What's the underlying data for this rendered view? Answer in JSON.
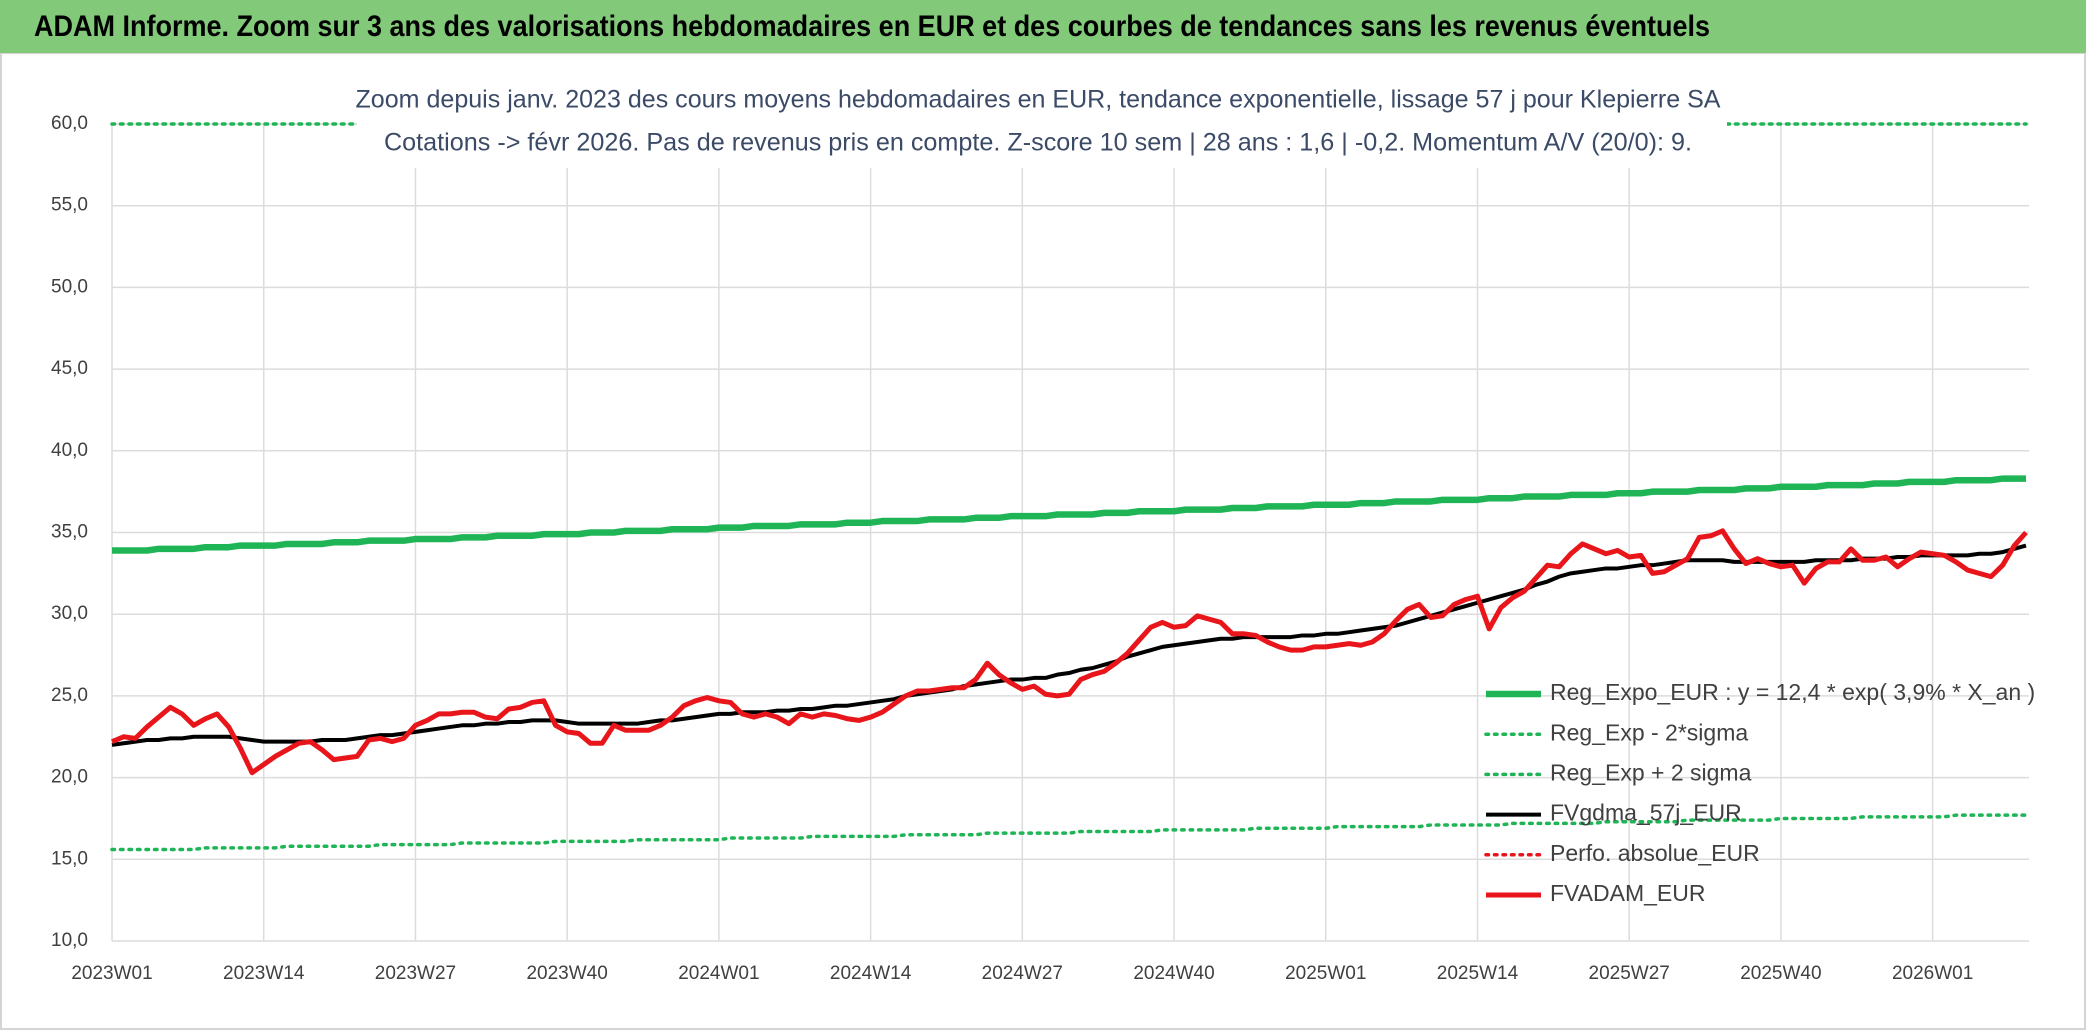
{
  "chart_data": {
    "type": "line",
    "title": "ADAM Informe. Zoom sur 3 ans des valorisations hebdomadaires en EUR et des courbes de tendances sans les revenus éventuels",
    "subtitle": [
      "Zoom depuis janv. 2023 des cours moyens hebdomadaires en EUR, tendance exponentielle, lissage 57 j pour Klepierre SA",
      "Cotations -> févr 2026. Pas de revenus pris en compte. Z-score 10 sem | 28 ans : 1,6 | -0,2. Momentum A/V (20/0): 9."
    ],
    "categories": [
      "2023W01",
      null,
      null,
      null,
      null,
      null,
      null,
      null,
      null,
      null,
      null,
      null,
      null,
      "2023W14",
      null,
      null,
      null,
      null,
      null,
      null,
      null,
      null,
      null,
      null,
      null,
      null,
      "2023W27",
      null,
      null,
      null,
      null,
      null,
      null,
      null,
      null,
      null,
      null,
      null,
      null,
      "2023W40",
      null,
      null,
      null,
      null,
      null,
      null,
      null,
      null,
      null,
      null,
      null,
      null,
      "2024W01",
      null,
      null,
      null,
      null,
      null,
      null,
      null,
      null,
      null,
      null,
      null,
      null,
      "2024W14",
      null,
      null,
      null,
      null,
      null,
      null,
      null,
      null,
      null,
      null,
      null,
      null,
      "2024W27",
      null,
      null,
      null,
      null,
      null,
      null,
      null,
      null,
      null,
      null,
      null,
      null,
      "2024W40",
      null,
      null,
      null,
      null,
      null,
      null,
      null,
      null,
      null,
      null,
      null,
      null,
      "2025W01",
      null,
      null,
      null,
      null,
      null,
      null,
      null,
      null,
      null,
      null,
      null,
      null,
      "2025W14",
      null,
      null,
      null,
      null,
      null,
      null,
      null,
      null,
      null,
      null,
      null,
      null,
      "2025W27",
      null,
      null,
      null,
      null,
      null,
      null,
      null,
      null,
      null,
      null,
      null,
      null,
      "2025W40",
      null,
      null,
      null,
      null,
      null,
      null,
      null,
      null,
      null,
      null,
      null,
      null,
      "2026W01",
      null,
      null,
      null,
      null,
      null,
      null,
      null,
      null
    ],
    "ylim": [
      10,
      60
    ],
    "yticks": [
      {
        "value": 10,
        "label": "10,0"
      },
      {
        "value": 15,
        "label": "15,0"
      },
      {
        "value": 20,
        "label": "20,0"
      },
      {
        "value": 25,
        "label": "25,0"
      },
      {
        "value": 30,
        "label": "30,0"
      },
      {
        "value": 35,
        "label": "35,0"
      },
      {
        "value": 40,
        "label": "40,0"
      },
      {
        "value": 45,
        "label": "45,0"
      },
      {
        "value": 50,
        "label": "50,0"
      },
      {
        "value": 55,
        "label": "55,0"
      },
      {
        "value": 60,
        "label": "60,0"
      }
    ],
    "grid": true,
    "legend": "lower right",
    "series": [
      {
        "name": "Reg_Expo_EUR : y = 12,4 * exp( 3,9% *  X_an )",
        "color": "#1fb556",
        "style": "solid",
        "values": [
          33.9,
          33.9,
          33.9,
          33.9,
          34.0,
          34.0,
          34.0,
          34.0,
          34.1,
          34.1,
          34.1,
          34.2,
          34.2,
          34.2,
          34.2,
          34.3,
          34.3,
          34.3,
          34.3,
          34.4,
          34.4,
          34.4,
          34.5,
          34.5,
          34.5,
          34.5,
          34.6,
          34.6,
          34.6,
          34.6,
          34.7,
          34.7,
          34.7,
          34.8,
          34.8,
          34.8,
          34.8,
          34.9,
          34.9,
          34.9,
          34.9,
          35.0,
          35.0,
          35.0,
          35.1,
          35.1,
          35.1,
          35.1,
          35.2,
          35.2,
          35.2,
          35.2,
          35.3,
          35.3,
          35.3,
          35.4,
          35.4,
          35.4,
          35.4,
          35.5,
          35.5,
          35.5,
          35.5,
          35.6,
          35.6,
          35.6,
          35.7,
          35.7,
          35.7,
          35.7,
          35.8,
          35.8,
          35.8,
          35.8,
          35.9,
          35.9,
          35.9,
          36.0,
          36.0,
          36.0,
          36.0,
          36.1,
          36.1,
          36.1,
          36.1,
          36.2,
          36.2,
          36.2,
          36.3,
          36.3,
          36.3,
          36.3,
          36.4,
          36.4,
          36.4,
          36.4,
          36.5,
          36.5,
          36.5,
          36.6,
          36.6,
          36.6,
          36.6,
          36.7,
          36.7,
          36.7,
          36.7,
          36.8,
          36.8,
          36.8,
          36.9,
          36.9,
          36.9,
          36.9,
          37.0,
          37.0,
          37.0,
          37.0,
          37.1,
          37.1,
          37.1,
          37.2,
          37.2,
          37.2,
          37.2,
          37.3,
          37.3,
          37.3,
          37.3,
          37.4,
          37.4,
          37.4,
          37.5,
          37.5,
          37.5,
          37.5,
          37.6,
          37.6,
          37.6,
          37.6,
          37.7,
          37.7,
          37.7,
          37.8,
          37.8,
          37.8,
          37.8,
          37.9,
          37.9,
          37.9,
          37.9,
          38.0,
          38.0,
          38.0,
          38.1,
          38.1,
          38.1,
          38.1,
          38.2,
          38.2,
          38.2,
          38.2,
          38.3,
          38.3,
          38.3
        ]
      },
      {
        "name": "Reg_Exp - 2*sigma",
        "color": "#1fb556",
        "style": "dotted",
        "values": [
          15.6,
          15.6,
          15.6,
          15.6,
          15.6,
          15.6,
          15.6,
          15.6,
          15.7,
          15.7,
          15.7,
          15.7,
          15.7,
          15.7,
          15.7,
          15.8,
          15.8,
          15.8,
          15.8,
          15.8,
          15.8,
          15.8,
          15.8,
          15.9,
          15.9,
          15.9,
          15.9,
          15.9,
          15.9,
          15.9,
          16.0,
          16.0,
          16.0,
          16.0,
          16.0,
          16.0,
          16.0,
          16.0,
          16.1,
          16.1,
          16.1,
          16.1,
          16.1,
          16.1,
          16.1,
          16.2,
          16.2,
          16.2,
          16.2,
          16.2,
          16.2,
          16.2,
          16.2,
          16.3,
          16.3,
          16.3,
          16.3,
          16.3,
          16.3,
          16.3,
          16.4,
          16.4,
          16.4,
          16.4,
          16.4,
          16.4,
          16.4,
          16.4,
          16.5,
          16.5,
          16.5,
          16.5,
          16.5,
          16.5,
          16.5,
          16.6,
          16.6,
          16.6,
          16.6,
          16.6,
          16.6,
          16.6,
          16.6,
          16.7,
          16.7,
          16.7,
          16.7,
          16.7,
          16.7,
          16.7,
          16.8,
          16.8,
          16.8,
          16.8,
          16.8,
          16.8,
          16.8,
          16.8,
          16.9,
          16.9,
          16.9,
          16.9,
          16.9,
          16.9,
          16.9,
          17.0,
          17.0,
          17.0,
          17.0,
          17.0,
          17.0,
          17.0,
          17.0,
          17.1,
          17.1,
          17.1,
          17.1,
          17.1,
          17.1,
          17.1,
          17.2,
          17.2,
          17.2,
          17.2,
          17.2,
          17.2,
          17.2,
          17.2,
          17.3,
          17.3,
          17.3,
          17.3,
          17.3,
          17.3,
          17.3,
          17.4,
          17.4,
          17.4,
          17.4,
          17.4,
          17.4,
          17.4,
          17.4,
          17.5,
          17.5,
          17.5,
          17.5,
          17.5,
          17.5,
          17.5,
          17.6,
          17.6,
          17.6,
          17.6,
          17.6,
          17.6,
          17.6,
          17.6,
          17.7,
          17.7,
          17.7,
          17.7,
          17.7,
          17.7,
          17.7
        ]
      },
      {
        "name": "Reg_Exp + 2 sigma",
        "color": "#1fb556",
        "style": "dotted",
        "values": [
          60,
          60,
          60,
          60,
          60,
          60,
          60,
          60,
          60,
          60,
          60,
          60,
          60,
          60,
          60,
          60,
          60,
          60,
          60,
          60,
          60,
          60,
          60,
          60,
          60,
          60,
          60,
          60,
          60,
          60,
          60,
          60,
          60,
          60,
          60,
          60,
          60,
          60,
          60,
          60,
          60,
          60,
          60,
          60,
          60,
          60,
          60,
          60,
          60,
          60,
          60,
          60,
          60,
          60,
          60,
          60,
          60,
          60,
          60,
          60,
          60,
          60,
          60,
          60,
          60,
          60,
          60,
          60,
          60,
          60,
          60,
          60,
          60,
          60,
          60,
          60,
          60,
          60,
          60,
          60,
          60,
          60,
          60,
          60,
          60,
          60,
          60,
          60,
          60,
          60,
          60,
          60,
          60,
          60,
          60,
          60,
          60,
          60,
          60,
          60,
          60,
          60,
          60,
          60,
          60,
          60,
          60,
          60,
          60,
          60,
          60,
          60,
          60,
          60,
          60,
          60,
          60,
          60,
          60,
          60,
          60,
          60,
          60,
          60,
          60,
          60,
          60,
          60,
          60,
          60,
          60,
          60,
          60,
          60,
          60,
          60,
          60,
          60,
          60,
          60,
          60,
          60,
          60,
          60,
          60,
          60,
          60,
          60,
          60,
          60,
          60,
          60,
          60,
          60,
          60,
          60,
          60,
          60,
          60,
          60,
          60,
          60,
          60,
          60,
          60
        ]
      },
      {
        "name": "FVgdma_57j_EUR",
        "color": "#000000",
        "style": "solid",
        "values": [
          22.0,
          22.1,
          22.2,
          22.3,
          22.3,
          22.4,
          22.4,
          22.5,
          22.5,
          22.5,
          22.5,
          22.4,
          22.3,
          22.2,
          22.2,
          22.2,
          22.2,
          22.2,
          22.3,
          22.3,
          22.3,
          22.4,
          22.5,
          22.6,
          22.6,
          22.7,
          22.8,
          22.9,
          23.0,
          23.1,
          23.2,
          23.2,
          23.3,
          23.3,
          23.4,
          23.4,
          23.5,
          23.5,
          23.5,
          23.4,
          23.3,
          23.3,
          23.3,
          23.3,
          23.3,
          23.3,
          23.4,
          23.5,
          23.5,
          23.6,
          23.7,
          23.8,
          23.9,
          23.9,
          24.0,
          24.0,
          24.0,
          24.1,
          24.1,
          24.2,
          24.2,
          24.3,
          24.4,
          24.4,
          24.5,
          24.6,
          24.7,
          24.8,
          25.0,
          25.1,
          25.2,
          25.3,
          25.4,
          25.6,
          25.7,
          25.8,
          25.9,
          26.0,
          26.0,
          26.1,
          26.1,
          26.3,
          26.4,
          26.6,
          26.7,
          26.9,
          27.1,
          27.4,
          27.6,
          27.8,
          28.0,
          28.1,
          28.2,
          28.3,
          28.4,
          28.5,
          28.5,
          28.6,
          28.6,
          28.6,
          28.6,
          28.6,
          28.7,
          28.7,
          28.8,
          28.8,
          28.9,
          29.0,
          29.1,
          29.2,
          29.3,
          29.5,
          29.7,
          29.9,
          30.1,
          30.3,
          30.5,
          30.7,
          30.9,
          31.1,
          31.3,
          31.5,
          31.8,
          32.0,
          32.3,
          32.5,
          32.6,
          32.7,
          32.8,
          32.8,
          32.9,
          33.0,
          33.0,
          33.1,
          33.2,
          33.3,
          33.3,
          33.3,
          33.3,
          33.2,
          33.2,
          33.2,
          33.2,
          33.2,
          33.2,
          33.2,
          33.3,
          33.3,
          33.3,
          33.3,
          33.4,
          33.4,
          33.4,
          33.5,
          33.5,
          33.6,
          33.6,
          33.6,
          33.6,
          33.6,
          33.7,
          33.7,
          33.8,
          34.0,
          34.2
        ]
      },
      {
        "name": "Perfo. absolue_EUR",
        "color": "#e8161b",
        "style": "dotted",
        "values": [
          null,
          null,
          null,
          null,
          null,
          null,
          null,
          null,
          null,
          null,
          null,
          null,
          null,
          null,
          null,
          null,
          null,
          null,
          null,
          null,
          null,
          null,
          null,
          null,
          null,
          null,
          null,
          null,
          null,
          null,
          null,
          null,
          null,
          null,
          null,
          null,
          null,
          null,
          null,
          null,
          null,
          null,
          null,
          null,
          null,
          null,
          null,
          null,
          null,
          null,
          null,
          null,
          null,
          null,
          null,
          null,
          null,
          null,
          null,
          null,
          null,
          null,
          null,
          null,
          null,
          null,
          null,
          null,
          null,
          null,
          null,
          null,
          null,
          null,
          null,
          null,
          null,
          null,
          null,
          null,
          null,
          null,
          null,
          null,
          null,
          null,
          null,
          null,
          null,
          null,
          null,
          null,
          null,
          null,
          null,
          null,
          null,
          null,
          null,
          null,
          null,
          null,
          null,
          null,
          null,
          null,
          null,
          null,
          null,
          null,
          null,
          null,
          null,
          null,
          null,
          null,
          null,
          null,
          null,
          null,
          null,
          null,
          null,
          null,
          null,
          null,
          null,
          null,
          null,
          null,
          null,
          null,
          null,
          null,
          null,
          null,
          null,
          null,
          null,
          null,
          null,
          null,
          null,
          null,
          null,
          null,
          null,
          null,
          null,
          null,
          null,
          null,
          null,
          null,
          null,
          null,
          null,
          null,
          null,
          null,
          null,
          null,
          null,
          null,
          null
        ]
      },
      {
        "name": "FVADAM_EUR",
        "color": "#e8161b",
        "style": "solid",
        "values": [
          22.2,
          22.5,
          22.4,
          23.1,
          23.7,
          24.3,
          23.9,
          23.2,
          23.6,
          23.9,
          23.1,
          21.8,
          20.3,
          20.8,
          21.3,
          21.7,
          22.1,
          22.2,
          21.7,
          21.1,
          21.2,
          21.3,
          22.3,
          22.4,
          22.2,
          22.4,
          23.2,
          23.5,
          23.9,
          23.9,
          24.0,
          24.0,
          23.7,
          23.6,
          24.2,
          24.3,
          24.6,
          24.7,
          23.2,
          22.8,
          22.7,
          22.1,
          22.1,
          23.2,
          22.9,
          22.9,
          22.9,
          23.2,
          23.7,
          24.4,
          24.7,
          24.9,
          24.7,
          24.6,
          23.9,
          23.7,
          23.9,
          23.7,
          23.3,
          23.9,
          23.7,
          23.9,
          23.8,
          23.6,
          23.5,
          23.7,
          24.0,
          24.5,
          25.0,
          25.3,
          25.3,
          25.4,
          25.5,
          25.5,
          26.0,
          27.0,
          26.3,
          25.8,
          25.4,
          25.6,
          25.1,
          25.0,
          25.1,
          26.0,
          26.3,
          26.5,
          27.0,
          27.6,
          28.4,
          29.2,
          29.5,
          29.2,
          29.3,
          29.9,
          29.7,
          29.5,
          28.8,
          28.8,
          28.7,
          28.3,
          28.0,
          27.8,
          27.8,
          28.0,
          28.0,
          28.1,
          28.2,
          28.1,
          28.3,
          28.8,
          29.6,
          30.3,
          30.6,
          29.8,
          29.9,
          30.6,
          30.9,
          31.1,
          29.1,
          30.4,
          31.0,
          31.4,
          32.2,
          33.0,
          32.9,
          33.7,
          34.3,
          34.0,
          33.7,
          33.9,
          33.5,
          33.6,
          32.5,
          32.6,
          33.0,
          33.4,
          34.7,
          34.8,
          35.1,
          34.0,
          33.1,
          33.4,
          33.1,
          32.9,
          33.0,
          31.9,
          32.8,
          33.2,
          33.2,
          34.0,
          33.3,
          33.3,
          33.5,
          32.9,
          33.4,
          33.8,
          33.7,
          33.6,
          33.2,
          32.7,
          32.5,
          32.3,
          33.0,
          34.2,
          35.0
        ]
      }
    ]
  }
}
